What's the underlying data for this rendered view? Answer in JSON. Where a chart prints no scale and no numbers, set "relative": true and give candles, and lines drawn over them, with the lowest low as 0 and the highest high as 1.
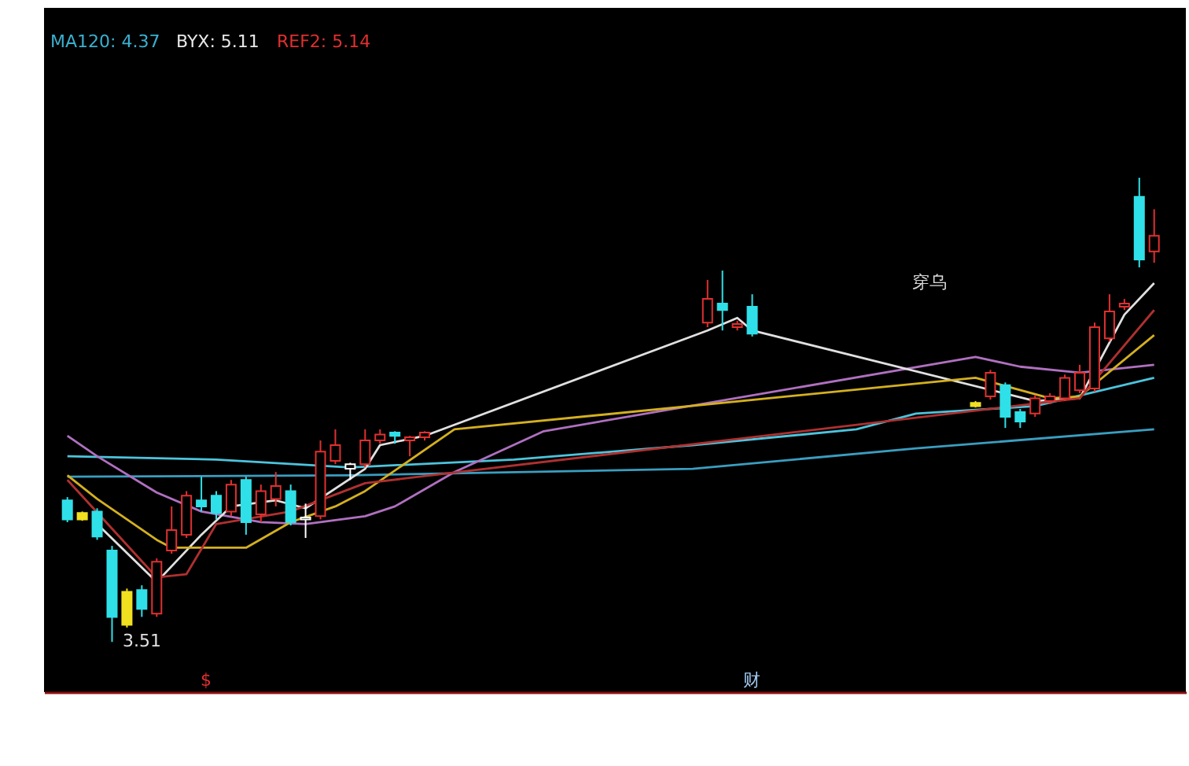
{
  "chart_data": {
    "type": "candlestick",
    "relative": true,
    "categories": [
      null,
      null,
      null,
      null,
      null,
      null,
      null,
      null,
      null,
      null,
      null,
      null,
      null,
      null,
      null,
      null,
      null,
      null,
      null,
      null,
      null,
      null,
      null,
      null,
      null,
      null,
      null,
      null,
      null,
      null,
      null,
      null,
      null,
      null,
      null,
      null,
      null,
      null,
      null,
      null,
      null,
      null,
      null,
      null,
      null,
      null,
      null,
      null,
      null,
      null,
      null,
      null,
      null,
      null,
      null,
      null,
      null,
      null,
      null,
      null,
      null,
      null,
      null,
      null,
      null,
      null,
      null,
      null,
      null,
      null,
      null,
      null,
      null,
      null
    ],
    "ohlc": [
      [
        0.305,
        0.312,
        0.258,
        0.264
      ],
      [
        0.278,
        0.281,
        0.261,
        0.264
      ],
      [
        0.281,
        0.288,
        0.22,
        0.227
      ],
      [
        0.197,
        0.207,
        0.0,
        0.054
      ],
      [
        0.108,
        0.115,
        0.031,
        0.037
      ],
      [
        0.112,
        0.122,
        0.054,
        0.071
      ],
      [
        0.061,
        0.18,
        0.054,
        0.173
      ],
      [
        0.197,
        0.292,
        0.19,
        0.241
      ],
      [
        0.231,
        0.325,
        0.224,
        0.315
      ],
      [
        0.305,
        0.356,
        0.281,
        0.292
      ],
      [
        0.315,
        0.325,
        0.264,
        0.278
      ],
      [
        0.281,
        0.349,
        0.271,
        0.339
      ],
      [
        0.349,
        0.356,
        0.231,
        0.258
      ],
      [
        0.275,
        0.339,
        0.258,
        0.325
      ],
      [
        0.308,
        0.366,
        0.292,
        0.336
      ],
      [
        0.325,
        0.339,
        0.251,
        0.258
      ],
      [
        0.264,
        0.298,
        0.224,
        0.268
      ],
      [
        0.271,
        0.434,
        0.264,
        0.41
      ],
      [
        0.39,
        0.458,
        0.383,
        0.424
      ],
      [
        0.373,
        0.386,
        0.349,
        0.383
      ],
      [
        0.383,
        0.458,
        0.376,
        0.434
      ],
      [
        0.434,
        0.458,
        0.427,
        0.447
      ],
      [
        0.451,
        0.454,
        0.427,
        0.444
      ],
      [
        0.434,
        0.444,
        0.4,
        0.441
      ],
      [
        0.441,
        0.454,
        0.434,
        0.451
      ],
      null,
      null,
      null,
      null,
      null,
      null,
      null,
      null,
      null,
      null,
      null,
      null,
      null,
      null,
      null,
      null,
      null,
      null,
      [
        0.688,
        0.78,
        0.678,
        0.739
      ],
      [
        0.729,
        0.8,
        0.671,
        0.715
      ],
      [
        0.678,
        0.692,
        0.671,
        0.685
      ],
      [
        0.722,
        0.749,
        0.658,
        0.664
      ],
      null,
      null,
      null,
      null,
      null,
      null,
      null,
      null,
      null,
      null,
      null,
      null,
      null,
      null,
      [
        0.515,
        0.519,
        0.505,
        0.508
      ],
      [
        0.529,
        0.586,
        0.522,
        0.58
      ],
      [
        0.553,
        0.559,
        0.461,
        0.485
      ],
      [
        0.495,
        0.502,
        0.461,
        0.475
      ],
      [
        0.492,
        0.532,
        0.485,
        0.525
      ],
      [
        0.519,
        0.536,
        0.512,
        0.529
      ],
      [
        0.525,
        0.576,
        0.519,
        0.569
      ],
      [
        0.542,
        0.597,
        0.536,
        0.58
      ],
      [
        0.546,
        0.688,
        0.539,
        0.678
      ],
      [
        0.654,
        0.749,
        0.647,
        0.712
      ],
      [
        0.722,
        0.739,
        0.715,
        0.729
      ],
      [
        0.959,
        1.0,
        0.807,
        0.824
      ],
      [
        0.841,
        0.932,
        0.817,
        0.875
      ]
    ],
    "colors": [
      "#30e0e8",
      "#f0e020",
      "#30e0e8",
      "#30e0e8",
      "#f0e020",
      "#30e0e8",
      "#e03030",
      "#e03030",
      "#e03030",
      "#30e0e8",
      "#30e0e8",
      "#e03030",
      "#30e0e8",
      "#e03030",
      "#e03030",
      "#30e0e8",
      "#ffffff",
      "#e03030",
      "#e03030",
      "#ffffff",
      "#e03030",
      "#e03030",
      "#30e0e8",
      "#e03030",
      "#e03030",
      null,
      null,
      null,
      null,
      null,
      null,
      null,
      null,
      null,
      null,
      null,
      null,
      null,
      null,
      null,
      null,
      null,
      null,
      "#e03030",
      "#30e0e8",
      "#e03030",
      "#30e0e8",
      null,
      null,
      null,
      null,
      null,
      null,
      null,
      null,
      null,
      null,
      null,
      null,
      null,
      null,
      "#f0e020",
      "#e03030",
      "#30e0e8",
      "#30e0e8",
      "#e03030",
      "#e03030",
      "#e03030",
      "#e03030",
      "#e03030",
      "#e03030",
      "#e03030",
      "#30e0e8",
      "#e03030"
    ],
    "series": [
      {
        "type": "line",
        "color": "#3a9ec0",
        "values": [
          0.356,
          null,
          null,
          null,
          null,
          null,
          null,
          null,
          null,
          null,
          null,
          null,
          null,
          null,
          null,
          null,
          null,
          null,
          null,
          0.359,
          null,
          null,
          null,
          null,
          null,
          null,
          null,
          null,
          null,
          null,
          null,
          null,
          null,
          null,
          null,
          null,
          null,
          null,
          null,
          null,
          null,
          null,
          0.373,
          null,
          null,
          null,
          null,
          null,
          null,
          null,
          null,
          null,
          null,
          null,
          null,
          null,
          null,
          0.417,
          null,
          null,
          null,
          null,
          null,
          null,
          null,
          null,
          null,
          null,
          null,
          null,
          null,
          null,
          null,
          0.458
        ]
      },
      {
        "type": "line",
        "color": "#4cc4dc",
        "values": [
          0.4,
          null,
          null,
          null,
          null,
          null,
          null,
          null,
          null,
          null,
          0.393,
          null,
          null,
          null,
          null,
          null,
          null,
          null,
          null,
          0.376,
          null,
          null,
          null,
          null,
          null,
          null,
          null,
          null,
          null,
          null,
          0.393,
          null,
          null,
          null,
          null,
          null,
          null,
          null,
          null,
          null,
          null,
          null,
          0.424,
          null,
          null,
          null,
          null,
          null,
          null,
          null,
          null,
          null,
          null,
          0.458,
          null,
          null,
          null,
          0.492,
          null,
          null,
          null,
          null,
          null,
          null,
          null,
          0.508,
          null,
          null,
          null,
          null,
          null,
          null,
          null,
          0.569
        ]
      },
      {
        "type": "line",
        "color": "#b070c0",
        "values": [
          0.444,
          null,
          0.4,
          null,
          null,
          null,
          0.322,
          null,
          null,
          0.281,
          null,
          null,
          null,
          0.258,
          null,
          null,
          0.254,
          null,
          null,
          null,
          0.271,
          null,
          0.292,
          null,
          null,
          null,
          0.366,
          null,
          null,
          null,
          null,
          null,
          0.454,
          null,
          null,
          null,
          null,
          null,
          null,
          null,
          null,
          null,
          null,
          null,
          null,
          null,
          null,
          null,
          null,
          null,
          null,
          null,
          null,
          null,
          null,
          null,
          null,
          null,
          null,
          null,
          null,
          0.614,
          null,
          null,
          0.593,
          null,
          null,
          null,
          0.58,
          null,
          null,
          null,
          null,
          0.597
        ]
      },
      {
        "type": "line",
        "color": "#e0e0e0",
        "values": [
          null,
          null,
          0.254,
          null,
          null,
          null,
          0.129,
          null,
          null,
          0.231,
          null,
          0.292,
          null,
          null,
          0.305,
          null,
          0.288,
          null,
          null,
          null,
          0.373,
          0.424,
          null,
          null,
          0.444,
          null,
          null,
          null,
          null,
          null,
          null,
          null,
          null,
          null,
          null,
          null,
          null,
          null,
          null,
          null,
          null,
          null,
          null,
          0.671,
          null,
          0.698,
          0.671,
          null,
          null,
          null,
          null,
          null,
          null,
          null,
          null,
          null,
          null,
          null,
          null,
          null,
          null,
          null,
          null,
          null,
          null,
          0.519,
          null,
          null,
          0.525,
          null,
          null,
          0.705,
          null,
          0.773
        ]
      },
      {
        "type": "line",
        "color": "#d4b020",
        "values": [
          0.359,
          null,
          0.308,
          null,
          null,
          null,
          0.22,
          0.203,
          null,
          null,
          null,
          null,
          0.203,
          null,
          null,
          0.258,
          null,
          null,
          0.292,
          null,
          0.325,
          null,
          null,
          null,
          null,
          null,
          0.458,
          null,
          null,
          null,
          null,
          null,
          null,
          null,
          null,
          null,
          null,
          null,
          null,
          null,
          null,
          null,
          null,
          null,
          null,
          null,
          null,
          null,
          null,
          null,
          null,
          null,
          null,
          null,
          null,
          null,
          null,
          null,
          null,
          null,
          null,
          0.569,
          null,
          null,
          null,
          null,
          0.525,
          null,
          0.529,
          null,
          null,
          null,
          null,
          0.661
        ]
      },
      {
        "type": "line",
        "color": "#b03030",
        "values": [
          0.349,
          null,
          null,
          null,
          null,
          null,
          0.139,
          null,
          0.146,
          null,
          0.254,
          null,
          null,
          null,
          null,
          0.281,
          null,
          null,
          null,
          null,
          0.342,
          null,
          null,
          null,
          null,
          null,
          null,
          null,
          null,
          null,
          null,
          null,
          null,
          null,
          null,
          null,
          null,
          null,
          null,
          null,
          null,
          null,
          null,
          null,
          null,
          null,
          null,
          null,
          null,
          null,
          null,
          null,
          null,
          null,
          null,
          null,
          null,
          null,
          null,
          null,
          null,
          null,
          null,
          null,
          null,
          null,
          null,
          null,
          0.525,
          null,
          null,
          null,
          null,
          0.715
        ]
      }
    ],
    "annotations": [
      "MA120: 4.37",
      "BYX: 5.11",
      "REF2: 5.14",
      "穿乌",
      "$",
      "财",
      "3.51"
    ]
  }
}
